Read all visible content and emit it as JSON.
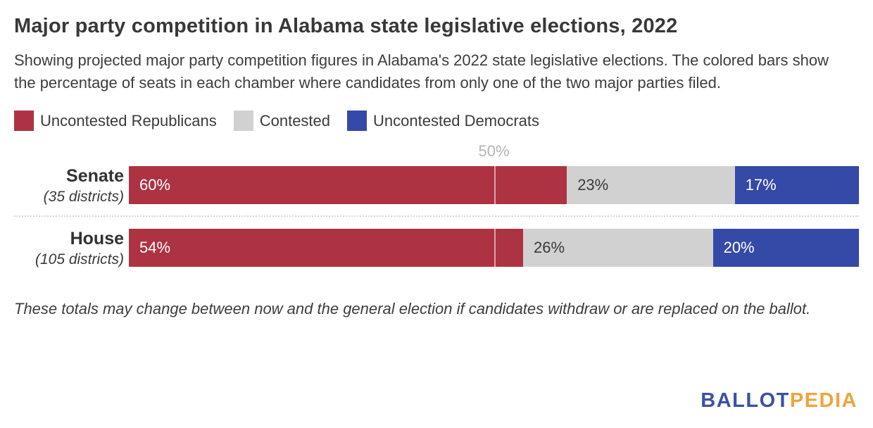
{
  "title": "Major party competition in Alabama state legislative elections, 2022",
  "subtitle": "Showing projected major party competition figures in Alabama's 2022 state legislative elections. The colored bars show the percentage of seats in each chamber where candidates from only one of the two major parties filed.",
  "colors": {
    "republican": "#ad3343",
    "contested": "#d1d1d1",
    "democrat": "#3549a6",
    "axis_label": "#b4b4b4",
    "logo_blue": "#3b51a4",
    "logo_gold": "#f0a43d"
  },
  "legend": [
    {
      "label": "Uncontested Republicans",
      "color_key": "republican"
    },
    {
      "label": "Contested",
      "color_key": "contested"
    },
    {
      "label": "Uncontested Democrats",
      "color_key": "democrat"
    }
  ],
  "chart_data": {
    "type": "bar",
    "orientation": "horizontal",
    "stacked": true,
    "xlim": [
      0,
      100
    ],
    "axis_marker": {
      "label": "50%",
      "value": 50
    },
    "categories": [
      "Senate",
      "House"
    ],
    "series": [
      {
        "name": "Uncontested Republicans",
        "values": [
          60,
          54
        ]
      },
      {
        "name": "Contested",
        "values": [
          23,
          26
        ]
      },
      {
        "name": "Uncontested Democrats",
        "values": [
          17,
          20
        ]
      }
    ],
    "rows": [
      {
        "name": "Senate",
        "sublabel": "(35 districts)",
        "values": {
          "republican": 60,
          "contested": 23,
          "democrat": 17
        },
        "labels": {
          "republican": "60%",
          "contested": "23%",
          "democrat": "17%"
        }
      },
      {
        "name": "House",
        "sublabel": "(105 districts)",
        "values": {
          "republican": 54,
          "contested": 26,
          "democrat": 20
        },
        "labels": {
          "republican": "54%",
          "contested": "26%",
          "democrat": "20%"
        }
      }
    ]
  },
  "footnote": "These totals may change between now and the general election if candidates withdraw or are replaced on the ballot.",
  "logo": {
    "part1": "BALLOT",
    "part2": "PEDIA"
  }
}
